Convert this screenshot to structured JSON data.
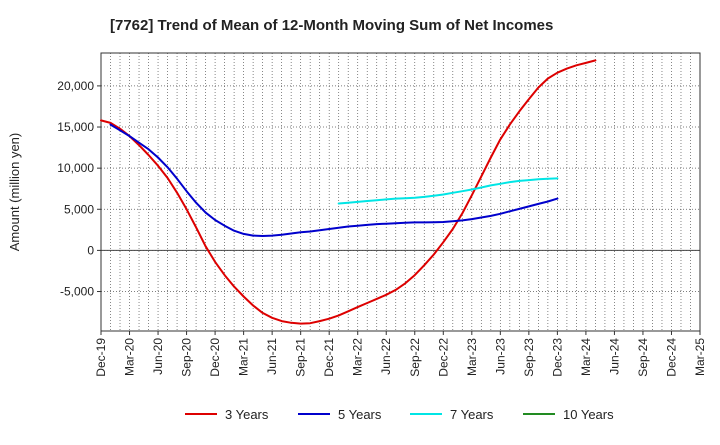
{
  "chart_data": {
    "type": "line",
    "title": "[7762]  Trend of Mean of 12-Month Moving Sum of Net Incomes",
    "ylabel": "Amount (million yen)",
    "xlabel": "",
    "ylim": [
      -9800,
      24000
    ],
    "yticks": [
      -5000,
      0,
      5000,
      10000,
      15000,
      20000
    ],
    "ytick_labels": [
      "-5,000",
      "0",
      "5,000",
      "10,000",
      "15,000",
      "20,000"
    ],
    "xticks": [
      "Dec-19",
      "Mar-20",
      "Jun-20",
      "Sep-20",
      "Dec-20",
      "Mar-21",
      "Jun-21",
      "Sep-21",
      "Dec-21",
      "Mar-22",
      "Jun-22",
      "Sep-22",
      "Dec-22",
      "Mar-23",
      "Jun-23",
      "Sep-23",
      "Dec-23",
      "Mar-24",
      "Jun-24",
      "Sep-24",
      "Dec-24",
      "Mar-25"
    ],
    "grid": true,
    "legend_position": "bottom",
    "series": [
      {
        "name": "3 Years",
        "color": "#dd0000",
        "points": [
          [
            "Dec-19",
            15800
          ],
          [
            "Jan-20",
            15500
          ],
          [
            "Feb-20",
            14800
          ],
          [
            "Mar-20",
            13900
          ],
          [
            "Apr-20",
            12800
          ],
          [
            "May-20",
            11600
          ],
          [
            "Jun-20",
            10300
          ],
          [
            "Jul-20",
            8800
          ],
          [
            "Aug-20",
            7000
          ],
          [
            "Sep-20",
            5000
          ],
          [
            "Oct-20",
            2800
          ],
          [
            "Nov-20",
            500
          ],
          [
            "Dec-20",
            -1400
          ],
          [
            "Jan-21",
            -3000
          ],
          [
            "Feb-21",
            -4400
          ],
          [
            "Mar-21",
            -5600
          ],
          [
            "Apr-21",
            -6700
          ],
          [
            "May-21",
            -7600
          ],
          [
            "Jun-21",
            -8200
          ],
          [
            "Jul-21",
            -8600
          ],
          [
            "Aug-21",
            -8800
          ],
          [
            "Sep-21",
            -8900
          ],
          [
            "Oct-21",
            -8850
          ],
          [
            "Nov-21",
            -8600
          ],
          [
            "Dec-21",
            -8300
          ],
          [
            "Jan-22",
            -7900
          ],
          [
            "Feb-22",
            -7400
          ],
          [
            "Mar-22",
            -6900
          ],
          [
            "Apr-22",
            -6400
          ],
          [
            "May-22",
            -5900
          ],
          [
            "Jun-22",
            -5400
          ],
          [
            "Jul-22",
            -4800
          ],
          [
            "Aug-22",
            -4000
          ],
          [
            "Sep-22",
            -3000
          ],
          [
            "Oct-22",
            -1800
          ],
          [
            "Nov-22",
            -500
          ],
          [
            "Dec-22",
            1000
          ],
          [
            "Jan-23",
            2600
          ],
          [
            "Feb-23",
            4500
          ],
          [
            "Mar-23",
            6700
          ],
          [
            "Apr-23",
            9000
          ],
          [
            "May-23",
            11300
          ],
          [
            "Jun-23",
            13500
          ],
          [
            "Jul-23",
            15300
          ],
          [
            "Aug-23",
            16900
          ],
          [
            "Sep-23",
            18400
          ],
          [
            "Oct-23",
            19800
          ],
          [
            "Nov-23",
            20900
          ],
          [
            "Dec-23",
            21600
          ],
          [
            "Jan-24",
            22100
          ],
          [
            "Feb-24",
            22500
          ],
          [
            "Mar-24",
            22800
          ],
          [
            "Apr-24",
            23100
          ]
        ]
      },
      {
        "name": "5 Years",
        "color": "#0000cc",
        "points": [
          [
            "Jan-20",
            15300
          ],
          [
            "Feb-20",
            14600
          ],
          [
            "Mar-20",
            13900
          ],
          [
            "Apr-20",
            13100
          ],
          [
            "May-20",
            12300
          ],
          [
            "Jun-20",
            11300
          ],
          [
            "Jul-20",
            10100
          ],
          [
            "Aug-20",
            8700
          ],
          [
            "Sep-20",
            7200
          ],
          [
            "Oct-20",
            5800
          ],
          [
            "Nov-20",
            4600
          ],
          [
            "Dec-20",
            3700
          ],
          [
            "Jan-21",
            3000
          ],
          [
            "Feb-21",
            2400
          ],
          [
            "Mar-21",
            2000
          ],
          [
            "Apr-21",
            1800
          ],
          [
            "May-21",
            1750
          ],
          [
            "Jun-21",
            1800
          ],
          [
            "Jul-21",
            1900
          ],
          [
            "Aug-21",
            2050
          ],
          [
            "Sep-21",
            2200
          ],
          [
            "Oct-21",
            2300
          ],
          [
            "Nov-21",
            2450
          ],
          [
            "Dec-21",
            2600
          ],
          [
            "Jan-22",
            2750
          ],
          [
            "Feb-22",
            2900
          ],
          [
            "Mar-22",
            3000
          ],
          [
            "Apr-22",
            3100
          ],
          [
            "May-22",
            3200
          ],
          [
            "Jun-22",
            3250
          ],
          [
            "Jul-22",
            3300
          ],
          [
            "Aug-22",
            3350
          ],
          [
            "Sep-22",
            3400
          ],
          [
            "Oct-22",
            3400
          ],
          [
            "Nov-22",
            3420
          ],
          [
            "Dec-22",
            3450
          ],
          [
            "Jan-23",
            3550
          ],
          [
            "Feb-23",
            3650
          ],
          [
            "Mar-23",
            3800
          ],
          [
            "Apr-23",
            4000
          ],
          [
            "May-23",
            4200
          ],
          [
            "Jun-23",
            4450
          ],
          [
            "Jul-23",
            4750
          ],
          [
            "Aug-23",
            5050
          ],
          [
            "Sep-23",
            5350
          ],
          [
            "Oct-23",
            5650
          ],
          [
            "Nov-23",
            5950
          ],
          [
            "Dec-23",
            6300
          ]
        ]
      },
      {
        "name": "7 Years",
        "color": "#00e5e5",
        "points": [
          [
            "Jan-22",
            5700
          ],
          [
            "Feb-22",
            5800
          ],
          [
            "Mar-22",
            5900
          ],
          [
            "Apr-22",
            6000
          ],
          [
            "May-22",
            6100
          ],
          [
            "Jun-22",
            6200
          ],
          [
            "Jul-22",
            6300
          ],
          [
            "Aug-22",
            6350
          ],
          [
            "Sep-22",
            6400
          ],
          [
            "Oct-22",
            6500
          ],
          [
            "Nov-22",
            6650
          ],
          [
            "Dec-22",
            6800
          ],
          [
            "Jan-23",
            7000
          ],
          [
            "Feb-23",
            7200
          ],
          [
            "Mar-23",
            7400
          ],
          [
            "Apr-23",
            7650
          ],
          [
            "May-23",
            7900
          ],
          [
            "Jun-23",
            8100
          ],
          [
            "Jul-23",
            8300
          ],
          [
            "Aug-23",
            8450
          ],
          [
            "Sep-23",
            8550
          ],
          [
            "Oct-23",
            8650
          ],
          [
            "Nov-23",
            8700
          ],
          [
            "Dec-23",
            8750
          ]
        ]
      },
      {
        "name": "10 Years",
        "color": "#228b22",
        "points": []
      }
    ]
  }
}
